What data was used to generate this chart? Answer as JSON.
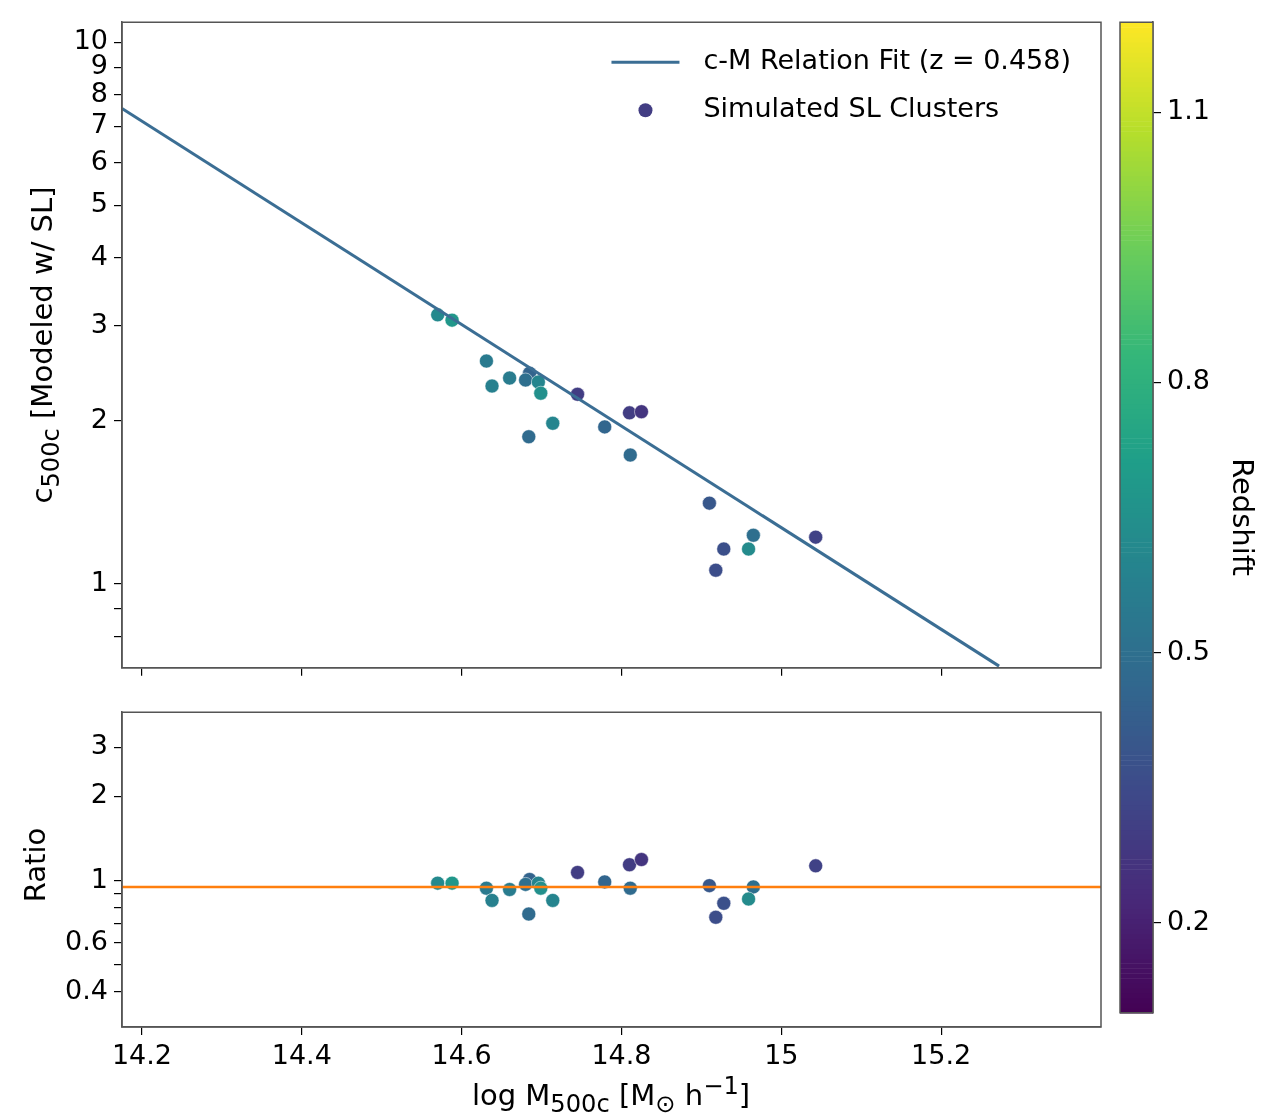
{
  "chart_data": [
    {
      "type": "scatter",
      "ylabel": "c$_{500c}$ [Modeled w/ SL]",
      "clabel": "Redshift",
      "clim": [
        0.1,
        1.2
      ],
      "cticks": [
        0.2,
        0.5,
        0.8,
        1.1
      ],
      "xlim": [
        14.175,
        15.4
      ],
      "xticks": [
        14.2,
        14.4,
        14.6,
        14.8,
        15.0,
        15.2
      ],
      "ylim": [
        0.705,
        10.9
      ],
      "yticks": [
        {
          "value": 0.8,
          "label": null
        },
        {
          "value": 0.9,
          "label": null
        },
        1,
        2,
        3,
        4,
        5,
        6,
        7,
        8,
        9,
        10
      ],
      "log": "y",
      "grid": false,
      "legend": "top right",
      "tick_labels": "y",
      "series": [
        {
          "type": "line",
          "name": "c-M Relation Fit (z = 0.458)",
          "color": "#3b6e94",
          "x": [
            14.175,
            15.2725
          ],
          "values": [
            7.55,
            0.705
          ]
        },
        {
          "type": "scatter",
          "name": "Simulated SL Clusters",
          "marker": "circle",
          "x": [
            14.57,
            14.588,
            14.631,
            14.638,
            14.66,
            14.685,
            14.68,
            14.696,
            14.699,
            14.714,
            14.684,
            14.745,
            14.779,
            14.81,
            14.825,
            14.811,
            14.91,
            14.965,
            14.928,
            14.959,
            14.918,
            15.043
          ],
          "values": [
            3.14,
            3.07,
            2.58,
            2.32,
            2.4,
            2.45,
            2.38,
            2.36,
            2.25,
            1.98,
            1.87,
            2.24,
            1.95,
            2.07,
            2.08,
            1.73,
            1.41,
            1.23,
            1.16,
            1.16,
            1.06,
            1.22
          ],
          "cvalues": [
            0.62,
            0.68,
            0.55,
            0.58,
            0.56,
            0.45,
            0.5,
            0.6,
            0.65,
            0.6,
            0.48,
            0.3,
            0.46,
            0.3,
            0.27,
            0.48,
            0.4,
            0.5,
            0.37,
            0.63,
            0.36,
            0.32
          ],
          "colors": [
            "#24898d",
            "#21978a",
            "#2a7a8e",
            "#27808e",
            "#297c8e",
            "#33648d",
            "#2e6f8e",
            "#25848e",
            "#23908c",
            "#25848e",
            "#306b8e",
            "#423d83",
            "#32668e",
            "#423d83",
            "#44357f",
            "#306b8e",
            "#38588b",
            "#2e6f8e",
            "#3b508a",
            "#248b8c",
            "#3c4d8a",
            "#404286"
          ]
        }
      ]
    },
    {
      "type": "scatter",
      "xlabel": "log M$_{500c}$ [M$_{⊙}$ h$^{−1}$]",
      "ylabel": "Ratio",
      "xlim": [
        14.175,
        15.4
      ],
      "xticks": [
        14.2,
        14.4,
        14.6,
        14.8,
        15.0,
        15.2
      ],
      "ylim": [
        0.305,
        4.0
      ],
      "yticks": [
        0.4,
        {
          "value": 0.5,
          "label": null
        },
        0.6,
        {
          "value": 0.7,
          "label": null
        },
        {
          "value": 0.8,
          "label": null
        },
        {
          "value": 0.9,
          "label": null
        },
        1,
        2,
        3
      ],
      "log": "y",
      "grid": false,
      "series": [
        {
          "type": "scatter",
          "marker": "circle",
          "x": [
            14.57,
            14.588,
            14.631,
            14.638,
            14.66,
            14.685,
            14.68,
            14.696,
            14.699,
            14.714,
            14.684,
            14.745,
            14.779,
            14.81,
            14.825,
            14.811,
            14.91,
            14.965,
            14.928,
            14.959,
            14.918,
            15.043
          ],
          "values": [
            0.98,
            0.98,
            0.94,
            0.85,
            0.93,
            1.01,
            0.97,
            0.98,
            0.94,
            0.85,
            0.76,
            1.07,
            0.99,
            1.14,
            1.19,
            0.94,
            0.96,
            0.95,
            0.83,
            0.86,
            0.74,
            1.13
          ],
          "colors": [
            "#24898d",
            "#21978a",
            "#2a7a8e",
            "#27808e",
            "#297c8e",
            "#33648d",
            "#2e6f8e",
            "#25848e",
            "#23908c",
            "#25848e",
            "#306b8e",
            "#423d83",
            "#32668e",
            "#423d83",
            "#44357f",
            "#306b8e",
            "#38588b",
            "#2e6f8e",
            "#3b508a",
            "#248b8c",
            "#3c4d8a",
            "#404286"
          ]
        }
      ],
      "ref_lines": [
        {
          "axis": "y",
          "value": 0.95,
          "color": "#ff7f0e"
        }
      ]
    }
  ]
}
